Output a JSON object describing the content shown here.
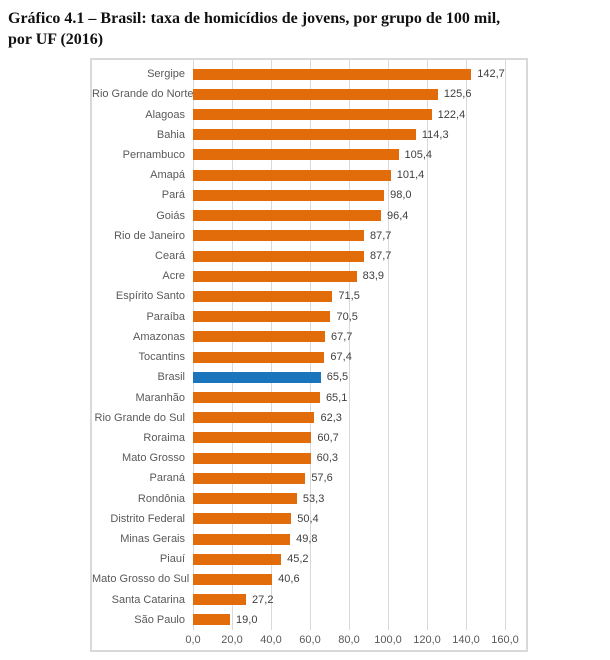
{
  "title": {
    "line1": "Gráfico 4.1 – Brasil: taxa de homicídios de jovens, por grupo de 100 mil,",
    "line2": "por UF (2016)"
  },
  "colors": {
    "bar_orange": "#e36c0a",
    "bar_highlight_blue": "#1b75bc",
    "gridline": "#d9d9d9",
    "category_label": "#595959",
    "value_label": "#404040"
  },
  "chart_data": {
    "type": "bar",
    "orientation": "horizontal",
    "title": "Gráfico 4.1 – Brasil: taxa de homicídios de jovens, por grupo de 100 mil, por UF (2016)",
    "xlabel": "",
    "ylabel": "",
    "xlim": [
      0,
      160
    ],
    "grid": true,
    "legend": false,
    "xtick_values": [
      0,
      20,
      40,
      60,
      80,
      100,
      120,
      140,
      160
    ],
    "xtick_labels": [
      "0,0",
      "20,0",
      "40,0",
      "60,0",
      "80,0",
      "100,0",
      "120,0",
      "140,0",
      "160,0"
    ],
    "highlight_category": "Brasil",
    "categories": [
      "Sergipe",
      "Rio Grande do Norte",
      "Alagoas",
      "Bahia",
      "Pernambuco",
      "Amapá",
      "Pará",
      "Goiás",
      "Rio de Janeiro",
      "Ceará",
      "Acre",
      "Espírito Santo",
      "Paraíba",
      "Amazonas",
      "Tocantins",
      "Brasil",
      "Maranhão",
      "Rio Grande do Sul",
      "Roraima",
      "Mato Grosso",
      "Paraná",
      "Rondônia",
      "Distrito Federal",
      "Minas Gerais",
      "Piauí",
      "Mato Grosso do Sul",
      "Santa Catarina",
      "São Paulo"
    ],
    "values": [
      142.7,
      125.6,
      122.4,
      114.3,
      105.4,
      101.4,
      98.0,
      96.4,
      87.7,
      87.7,
      83.9,
      71.5,
      70.5,
      67.7,
      67.4,
      65.5,
      65.1,
      62.3,
      60.7,
      60.3,
      57.6,
      53.3,
      50.4,
      49.8,
      45.2,
      40.6,
      27.2,
      19.0
    ],
    "value_labels": [
      "142,7",
      "125,6",
      "122,4",
      "114,3",
      "105,4",
      "101,4",
      "98,0",
      "96,4",
      "87,7",
      "87,7",
      "83,9",
      "71,5",
      "70,5",
      "67,7",
      "67,4",
      "65,5",
      "65,1",
      "62,3",
      "60,7",
      "60,3",
      "57,6",
      "53,3",
      "50,4",
      "49,8",
      "45,2",
      "40,6",
      "27,2",
      "19,0"
    ]
  }
}
